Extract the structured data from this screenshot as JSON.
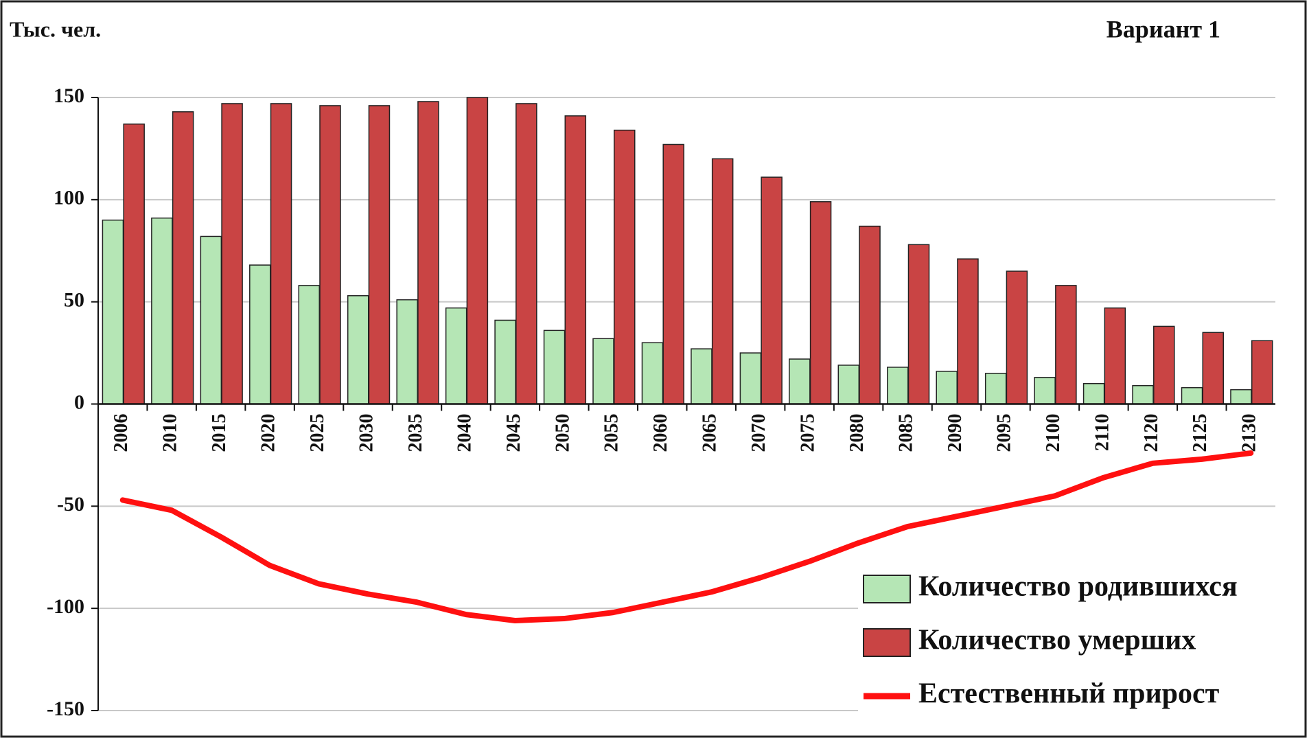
{
  "chart_data": {
    "type": "bar_line",
    "y_axis_label": "Тыс. чел.",
    "title": "Вариант 1",
    "categories": [
      "2006",
      "2010",
      "2015",
      "2020",
      "2025",
      "2030",
      "2035",
      "2040",
      "2045",
      "2050",
      "2055",
      "2060",
      "2065",
      "2070",
      "2075",
      "2080",
      "2085",
      "2090",
      "2095",
      "2100",
      "2110",
      "2120",
      "2125",
      "2130"
    ],
    "series": [
      {
        "name": "Количество родившихся",
        "type": "bar",
        "color": "#b5e6b5",
        "values": [
          90,
          91,
          82,
          68,
          58,
          53,
          51,
          47,
          41,
          36,
          32,
          30,
          27,
          25,
          22,
          19,
          18,
          16,
          15,
          13,
          10,
          9,
          8,
          7
        ]
      },
      {
        "name": "Количество умерших",
        "type": "bar",
        "color": "#c94444",
        "values": [
          137,
          143,
          147,
          147,
          146,
          146,
          148,
          150,
          147,
          141,
          134,
          127,
          120,
          111,
          99,
          87,
          78,
          71,
          65,
          58,
          47,
          38,
          35,
          31
        ]
      },
      {
        "name": "Естественный прирост",
        "type": "line",
        "color": "#ff1010",
        "values": [
          -47,
          -52,
          -65,
          -79,
          -88,
          -93,
          -97,
          -103,
          -106,
          -105,
          -102,
          -97,
          -92,
          -85,
          -77,
          -68,
          -60,
          -55,
          -50,
          -45,
          -36,
          -29,
          -27,
          -24
        ]
      }
    ],
    "ylim": [
      -150,
      150
    ],
    "yticks": [
      -150,
      -100,
      -50,
      0,
      50,
      100,
      150
    ],
    "grid": true
  }
}
